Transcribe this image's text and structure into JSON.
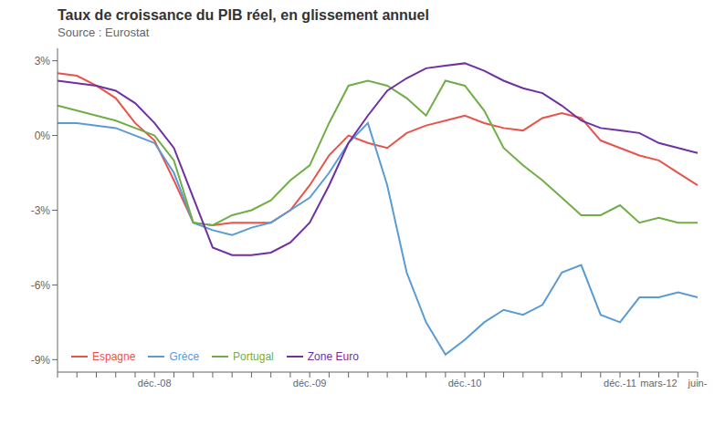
{
  "chart_data": {
    "type": "line",
    "title": "Taux de croissance du PIB réel, en glissement annuel",
    "subtitle": "Source : Eurostat",
    "categories": [
      null,
      null,
      null,
      null,
      null,
      "déc.-08",
      null,
      null,
      null,
      null,
      null,
      null,
      null,
      "déc.-09",
      null,
      null,
      null,
      null,
      null,
      null,
      null,
      "déc.-10",
      null,
      null,
      null,
      null,
      null,
      null,
      null,
      "déc.-11",
      null,
      "mars-12",
      null,
      "juin-"
    ],
    "series": [
      {
        "name": "Espagne",
        "color": "#e8534a",
        "values": [
          2.5,
          2.4,
          2.0,
          1.5,
          0.5,
          -0.2,
          -1.8,
          -3.5,
          -3.6,
          -3.5,
          -3.5,
          -3.5,
          -3.0,
          -2.0,
          -0.8,
          0.0,
          -0.3,
          -0.5,
          0.1,
          0.4,
          0.6,
          0.8,
          0.5,
          0.3,
          0.2,
          0.7,
          0.9,
          0.7,
          -0.2,
          -0.5,
          -0.8,
          -1.0,
          -1.5,
          -2.0
        ]
      },
      {
        "name": "Grèce",
        "color": "#5b9bd5",
        "values": [
          0.5,
          0.5,
          0.4,
          0.3,
          0.0,
          -0.3,
          -1.5,
          -3.5,
          -3.8,
          -4.0,
          -3.7,
          -3.5,
          -3.0,
          -2.5,
          -1.5,
          -0.3,
          0.5,
          -2.0,
          -5.5,
          -7.5,
          -8.8,
          -8.2,
          -7.5,
          -7.0,
          -7.2,
          -6.8,
          -5.5,
          -5.2,
          -7.2,
          -7.5,
          -6.5,
          -6.5,
          -6.3,
          -6.5
        ]
      },
      {
        "name": "Portugal",
        "color": "#70ad47",
        "values": [
          1.2,
          1.0,
          0.8,
          0.6,
          0.3,
          0.0,
          -1.0,
          -3.5,
          -3.6,
          -3.2,
          -3.0,
          -2.6,
          -1.8,
          -1.2,
          0.5,
          2.0,
          2.2,
          2.0,
          1.5,
          0.8,
          2.2,
          2.0,
          1.0,
          -0.5,
          -1.2,
          -1.8,
          -2.5,
          -3.2,
          -3.2,
          -2.8,
          -3.5,
          -3.3,
          -3.5,
          -3.5
        ]
      },
      {
        "name": "Zone Euro",
        "color": "#7030a0",
        "values": [
          2.2,
          2.1,
          2.0,
          1.8,
          1.3,
          0.5,
          -0.5,
          -2.5,
          -4.5,
          -4.8,
          -4.8,
          -4.7,
          -4.3,
          -3.5,
          -2.0,
          -0.3,
          0.8,
          1.8,
          2.3,
          2.7,
          2.8,
          2.9,
          2.6,
          2.2,
          1.9,
          1.7,
          1.2,
          0.6,
          0.3,
          0.2,
          0.1,
          -0.3,
          -0.5,
          -0.7
        ]
      }
    ],
    "ylim": [
      -9.5,
      3.5
    ],
    "yticks": [
      {
        "value": -9,
        "label": "-9%"
      },
      {
        "value": -6,
        "label": "-6%"
      },
      {
        "value": -3,
        "label": "-3%"
      },
      {
        "value": 0,
        "label": "0%"
      },
      {
        "value": 3,
        "label": "3%"
      }
    ],
    "grid": false,
    "legend": "lower left"
  }
}
